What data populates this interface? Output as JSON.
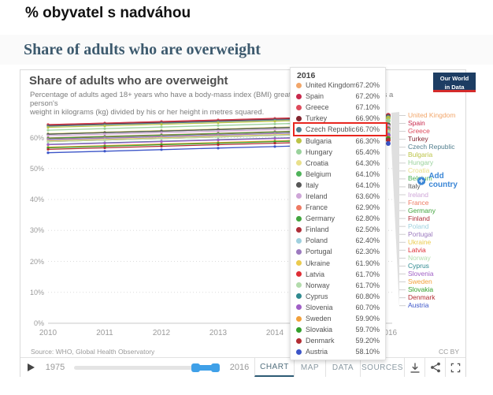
{
  "page": {
    "title": "% obyvatel s nadváhou",
    "section_heading": "Share of adults who are overweight"
  },
  "chart": {
    "title": "Share of adults who are overweight",
    "description_line1": "Percentage of adults aged 18+ years who have a body-mass index (BMI) greater than or equal to 25. BMI is a person's",
    "description_line2": "weight in kilograms (kg) divided by his or her height in metres squared.",
    "source": "Source: WHO, Global Health Observatory",
    "license": "CC BY",
    "logo": {
      "line1": "Our World",
      "line2": "in Data"
    },
    "add_country_label": "Add country",
    "accent_blue": "#3c87d6",
    "highlight_red": "#e8261f",
    "timeline": {
      "start_label": "1975",
      "end_label": "2016"
    },
    "tabs": [
      {
        "label": "CHART",
        "active": true
      },
      {
        "label": "MAP",
        "active": false
      },
      {
        "label": "DATA",
        "active": false
      },
      {
        "label": "SOURCES",
        "active": false
      }
    ],
    "action_icons": [
      "download-icon",
      "share-icon",
      "fullscreen-icon"
    ]
  },
  "tooltip": {
    "year": "2016",
    "highlighted_country": "Czech Republic",
    "highlight_index": 4
  },
  "chart_data": {
    "type": "line",
    "title": "Share of adults who are overweight",
    "unit": "%",
    "x": [
      2010,
      2016
    ],
    "x_ticks": [
      2010,
      2011,
      2012,
      2013,
      2014,
      2015,
      2016
    ],
    "y_ticks": [
      0,
      10,
      20,
      30,
      40,
      50,
      60
    ],
    "ylim": [
      0,
      70
    ],
    "grid": true,
    "legend_position": "right",
    "series": [
      {
        "name": "United Kingdom",
        "color": "#F2A66A",
        "values": [
          64.2,
          67.2
        ]
      },
      {
        "name": "Spain",
        "color": "#C8294C",
        "values": [
          64.2,
          67.2
        ]
      },
      {
        "name": "Greece",
        "color": "#DE4B5C",
        "values": [
          64.1,
          67.1
        ]
      },
      {
        "name": "Turkey",
        "color": "#83252F",
        "values": [
          63.9,
          66.9
        ]
      },
      {
        "name": "Czech Republic",
        "color": "#527E8E",
        "values": [
          63.7,
          66.7
        ]
      },
      {
        "name": "Bulgaria",
        "color": "#BCC447",
        "values": [
          63.3,
          66.3
        ]
      },
      {
        "name": "Hungary",
        "color": "#9AD29C",
        "values": [
          62.4,
          65.4
        ]
      },
      {
        "name": "Croatia",
        "color": "#E9E08B",
        "values": [
          61.3,
          64.3
        ]
      },
      {
        "name": "Belgium",
        "color": "#4FB35A",
        "values": [
          61.1,
          64.1
        ]
      },
      {
        "name": "Italy",
        "color": "#575757",
        "values": [
          61.1,
          64.1
        ]
      },
      {
        "name": "Ireland",
        "color": "#CFA6D8",
        "values": [
          60.6,
          63.6
        ]
      },
      {
        "name": "France",
        "color": "#EE7A63",
        "values": [
          59.9,
          62.9
        ]
      },
      {
        "name": "Germany",
        "color": "#43A53F",
        "values": [
          59.8,
          62.8
        ]
      },
      {
        "name": "Finland",
        "color": "#AE2E39",
        "values": [
          59.5,
          62.5
        ]
      },
      {
        "name": "Poland",
        "color": "#9FD0DE",
        "values": [
          59.4,
          62.4
        ]
      },
      {
        "name": "Portugal",
        "color": "#9C7ABF",
        "values": [
          59.3,
          62.3
        ]
      },
      {
        "name": "Ukraine",
        "color": "#EBCB4E",
        "values": [
          58.9,
          61.9
        ]
      },
      {
        "name": "Latvia",
        "color": "#DF2E35",
        "values": [
          58.7,
          61.7
        ]
      },
      {
        "name": "Norway",
        "color": "#B3DCAC",
        "values": [
          58.7,
          61.7
        ]
      },
      {
        "name": "Cyprus",
        "color": "#2F8A8F",
        "values": [
          57.8,
          60.8
        ]
      },
      {
        "name": "Slovenia",
        "color": "#A05FC6",
        "values": [
          57.7,
          60.7
        ]
      },
      {
        "name": "Sweden",
        "color": "#F2A03B",
        "values": [
          56.9,
          59.9
        ]
      },
      {
        "name": "Slovakia",
        "color": "#33A02C",
        "values": [
          56.7,
          59.7
        ]
      },
      {
        "name": "Denmark",
        "color": "#B22C32",
        "values": [
          56.2,
          59.2
        ]
      },
      {
        "name": "Austria",
        "color": "#3C55C8",
        "values": [
          55.1,
          58.1
        ]
      }
    ]
  }
}
